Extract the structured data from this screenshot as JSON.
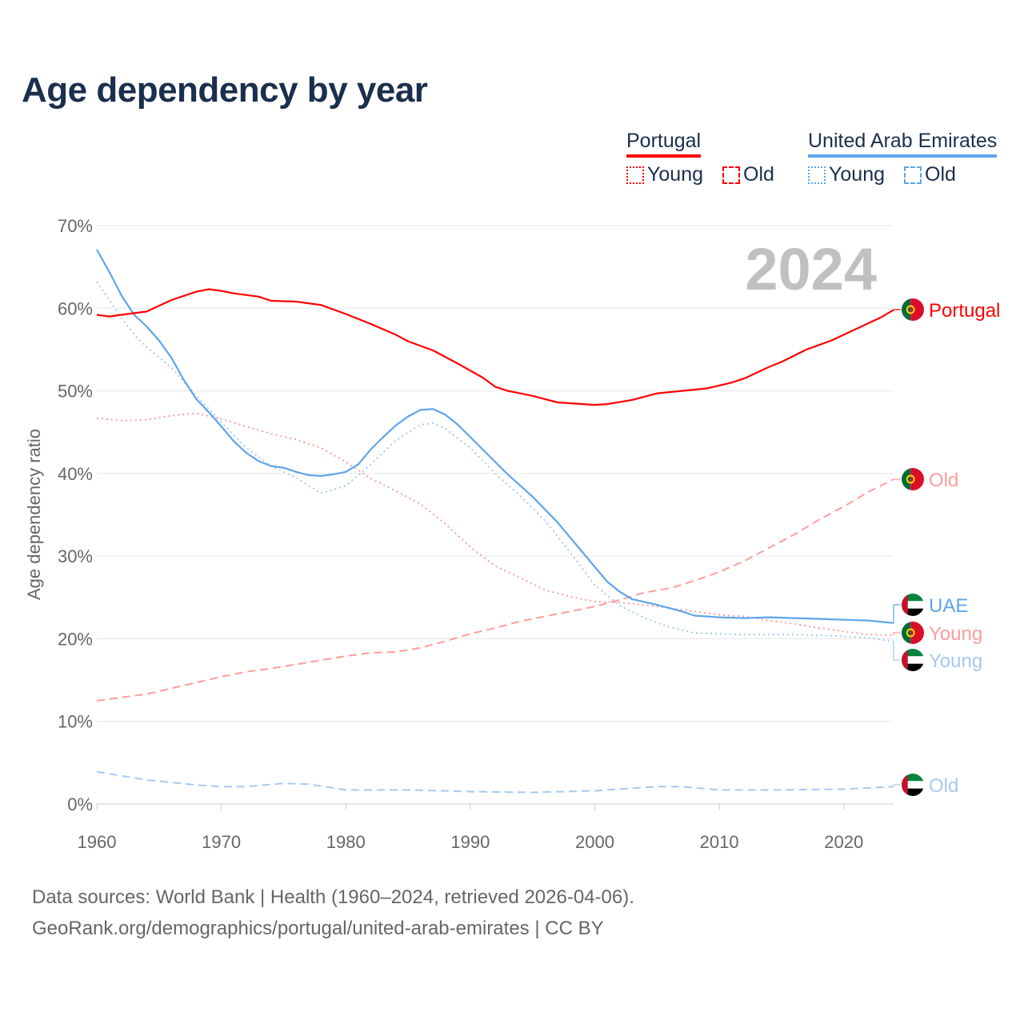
{
  "title": "Age dependency by year",
  "legend": {
    "portugal": {
      "label": "Portugal",
      "young": "Young",
      "old": "Old"
    },
    "uae": {
      "label": "United Arab Emirates",
      "young": "Young",
      "old": "Old"
    }
  },
  "year_label": "2024",
  "footer": {
    "line1": "Data sources: World Bank | Health (1960–2024, retrieved 2026-04-06).",
    "line2": "GeoRank.org/demographics/portugal/united-arab-emirates | CC BY"
  },
  "colors": {
    "portugal": "#ff0000",
    "portugal_light": "#ff9c9c",
    "uae": "#5ea5ea",
    "uae_light": "#a6c9f1",
    "grid": "#e6e6e6",
    "text": "#1b2f4d"
  },
  "chart_data": {
    "type": "line",
    "title": "Age dependency by year",
    "xlabel": "",
    "ylabel": "Age dependency ratio",
    "xlim": [
      1960,
      2024
    ],
    "ylim": [
      0,
      70
    ],
    "xticks": [
      "1960",
      "1970",
      "1980",
      "1990",
      "2000",
      "2010",
      "2020"
    ],
    "yticks": [
      "0%",
      "10%",
      "20%",
      "30%",
      "40%",
      "50%",
      "60%",
      "70%"
    ],
    "grid": true,
    "legend_position": "top-right",
    "series": [
      {
        "name": "Portugal",
        "end_label": "Portugal",
        "style": "solid",
        "color_key": "portugal",
        "flag": "portugal",
        "x": [
          1960,
          1961,
          1962,
          1964,
          1966,
          1968,
          1969,
          1970,
          1971,
          1973,
          1974,
          1976,
          1978,
          1980,
          1982,
          1984,
          1985,
          1987,
          1989,
          1991,
          1992,
          1993,
          1995,
          1997,
          2000,
          2001,
          2003,
          2005,
          2007,
          2009,
          2011,
          2012,
          2014,
          2015,
          2017,
          2019,
          2021,
          2023,
          2024
        ],
        "y": [
          59.2,
          59.0,
          59.2,
          59.6,
          61.0,
          62.0,
          62.3,
          62.1,
          61.8,
          61.4,
          60.9,
          60.8,
          60.4,
          59.3,
          58.1,
          56.8,
          56.0,
          54.9,
          53.3,
          51.6,
          50.5,
          50.0,
          49.4,
          48.6,
          48.3,
          48.4,
          48.9,
          49.7,
          50.0,
          50.3,
          51.0,
          51.5,
          52.9,
          53.5,
          55.0,
          56.1,
          57.5,
          58.9,
          59.8
        ]
      },
      {
        "name": "Portugal Young",
        "end_label": "Young",
        "style": "dotted",
        "color_key": "portugal_light",
        "flag": "portugal",
        "x": [
          1960,
          1962,
          1964,
          1966,
          1968,
          1970,
          1972,
          1974,
          1976,
          1978,
          1980,
          1982,
          1984,
          1986,
          1988,
          1990,
          1992,
          1994,
          1996,
          1998,
          2000,
          2002,
          2004,
          2006,
          2008,
          2010,
          2012,
          2014,
          2016,
          2018,
          2020,
          2022,
          2024
        ],
        "y": [
          46.7,
          46.4,
          46.5,
          47.0,
          47.3,
          46.6,
          45.7,
          44.8,
          44.1,
          43.1,
          41.4,
          39.4,
          37.9,
          36.3,
          33.9,
          31.1,
          28.8,
          27.4,
          25.9,
          25.1,
          24.5,
          24.4,
          24.1,
          23.7,
          23.3,
          22.9,
          22.7,
          22.2,
          21.8,
          21.3,
          20.9,
          20.5,
          20.4
        ]
      },
      {
        "name": "Portugal Old",
        "end_label": "Old",
        "style": "dashed",
        "color_key": "portugal_light",
        "flag": "portugal",
        "x": [
          1960,
          1964,
          1966,
          1968,
          1970,
          1972,
          1974,
          1976,
          1978,
          1980,
          1982,
          1984,
          1986,
          1988,
          1990,
          1992,
          1994,
          1996,
          1998,
          2000,
          2002,
          2004,
          2006,
          2008,
          2010,
          2012,
          2014,
          2016,
          2018,
          2020,
          2022,
          2024
        ],
        "y": [
          12.5,
          13.3,
          14.0,
          14.7,
          15.4,
          16.0,
          16.4,
          16.9,
          17.4,
          17.9,
          18.3,
          18.4,
          18.9,
          19.7,
          20.6,
          21.3,
          22.1,
          22.7,
          23.3,
          23.9,
          24.7,
          25.6,
          26.1,
          27.0,
          28.1,
          29.4,
          31.0,
          32.6,
          34.4,
          36.0,
          37.8,
          39.3
        ]
      },
      {
        "name": "UAE",
        "end_label": "UAE",
        "style": "solid",
        "color_key": "uae",
        "flag": "uae",
        "x": [
          1960,
          1961,
          1962,
          1963,
          1964,
          1965,
          1966,
          1967,
          1968,
          1969,
          1970,
          1971,
          1972,
          1973,
          1974,
          1975,
          1976,
          1977,
          1978,
          1979,
          1980,
          1981,
          1982,
          1983,
          1984,
          1985,
          1986,
          1987,
          1988,
          1989,
          1990,
          1992,
          1993,
          1995,
          1997,
          1999,
          2000,
          2001,
          2002,
          2003,
          2005,
          2007,
          2008,
          2010,
          2012,
          2014,
          2016,
          2018,
          2020,
          2022,
          2024
        ],
        "y": [
          67.1,
          64.4,
          61.5,
          59.2,
          57.8,
          56.1,
          54.0,
          51.3,
          49.0,
          47.4,
          45.7,
          43.9,
          42.5,
          41.5,
          40.9,
          40.7,
          40.2,
          39.8,
          39.7,
          39.9,
          40.2,
          41.1,
          42.9,
          44.4,
          45.8,
          46.9,
          47.7,
          47.8,
          47.1,
          45.9,
          44.4,
          41.4,
          39.9,
          37.2,
          34.1,
          30.5,
          28.7,
          26.9,
          25.7,
          24.8,
          24.1,
          23.3,
          22.8,
          22.6,
          22.5,
          22.6,
          22.5,
          22.4,
          22.3,
          22.2,
          21.9
        ]
      },
      {
        "name": "UAE Young",
        "end_label": "Young",
        "style": "dotted",
        "color_key": "uae_light",
        "flag": "uae",
        "x": [
          1960,
          1961,
          1962,
          1963,
          1964,
          1966,
          1968,
          1970,
          1972,
          1974,
          1976,
          1978,
          1980,
          1982,
          1984,
          1986,
          1987,
          1988,
          1990,
          1992,
          1994,
          1996,
          1998,
          2000,
          2002,
          2004,
          2006,
          2008,
          2010,
          2012,
          2016,
          2020,
          2022,
          2024
        ],
        "y": [
          63.2,
          61.0,
          58.8,
          56.8,
          55.3,
          52.8,
          49.4,
          46.2,
          43.1,
          40.9,
          39.5,
          37.6,
          38.5,
          41.1,
          44.0,
          45.9,
          46.1,
          45.4,
          43.1,
          40.0,
          37.3,
          34.3,
          30.5,
          26.5,
          24.0,
          22.5,
          21.4,
          20.7,
          20.6,
          20.5,
          20.5,
          20.3,
          20.1,
          19.7
        ]
      },
      {
        "name": "UAE Old",
        "end_label": "Old",
        "style": "dashed",
        "color_key": "uae_light",
        "flag": "uae",
        "x": [
          1960,
          1964,
          1968,
          1970,
          1972,
          1975,
          1977,
          1980,
          1985,
          1990,
          1995,
          2000,
          2005,
          2007,
          2010,
          2015,
          2020,
          2024
        ],
        "y": [
          3.9,
          2.9,
          2.3,
          2.1,
          2.1,
          2.5,
          2.4,
          1.7,
          1.7,
          1.5,
          1.4,
          1.6,
          2.1,
          2.1,
          1.7,
          1.7,
          1.8,
          2.1
        ]
      }
    ]
  }
}
